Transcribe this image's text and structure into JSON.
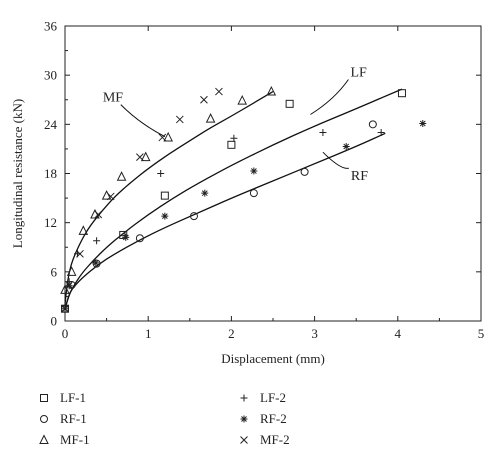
{
  "chart_data": {
    "type": "scatter",
    "xlabel": "Displacement (mm)",
    "ylabel": "Longitudinal resistance (kN)",
    "xlim": [
      0,
      5
    ],
    "ylim": [
      0,
      36
    ],
    "x_ticks": [
      0,
      1,
      2,
      3,
      4,
      5
    ],
    "y_ticks": [
      0,
      6,
      12,
      18,
      24,
      30,
      36
    ],
    "grid": false,
    "legend_position": "bottom",
    "series": [
      {
        "name": "LF-1",
        "marker": "square",
        "x": [
          0.0,
          0.7,
          1.2,
          2.0,
          2.7,
          4.05
        ],
        "y": [
          1.5,
          10.5,
          15.3,
          21.5,
          26.5,
          27.8
        ]
      },
      {
        "name": "RF-1",
        "marker": "circle",
        "x": [
          0.0,
          0.08,
          0.38,
          0.9,
          1.55,
          2.27,
          2.88,
          3.7
        ],
        "y": [
          1.5,
          4.4,
          7.0,
          10.1,
          12.8,
          15.6,
          18.2,
          24.0
        ]
      },
      {
        "name": "MF-1",
        "marker": "triangle",
        "x": [
          0.0,
          0.08,
          0.22,
          0.36,
          0.5,
          0.68,
          0.97,
          1.24,
          1.75,
          2.13,
          2.48
        ],
        "y": [
          3.8,
          6.0,
          11.0,
          13.0,
          15.3,
          17.6,
          20.0,
          22.4,
          24.7,
          26.9,
          28.0
        ]
      },
      {
        "name": "LF-2",
        "marker": "plus",
        "x": [
          0.0,
          0.05,
          0.15,
          0.38,
          0.72,
          1.15,
          2.03,
          3.1,
          3.8
        ],
        "y": [
          1.8,
          4.8,
          8.2,
          9.8,
          10.4,
          18.0,
          22.3,
          23.0,
          23.0
        ]
      },
      {
        "name": "RF-2",
        "marker": "asterisk",
        "x": [
          0.0,
          0.05,
          0.37,
          0.73,
          1.2,
          1.68,
          2.27,
          3.38,
          4.3
        ],
        "y": [
          1.5,
          4.3,
          7.1,
          10.2,
          12.8,
          15.6,
          18.3,
          21.3,
          24.1
        ]
      },
      {
        "name": "MF-2",
        "marker": "cross",
        "x": [
          0.0,
          0.05,
          0.18,
          0.4,
          0.55,
          0.9,
          1.17,
          1.38,
          1.67,
          1.85
        ],
        "y": [
          1.5,
          4.4,
          8.2,
          13.0,
          15.2,
          20.0,
          22.4,
          24.6,
          27.0,
          28.0
        ]
      }
    ],
    "fits": [
      {
        "label": "MF",
        "x": [
          0,
          0.02,
          0.05,
          0.1,
          0.2,
          0.3,
          0.45,
          0.6,
          0.8,
          1.0,
          1.25,
          1.5,
          1.75,
          2.0,
          2.25,
          2.5
        ],
        "y": [
          2.0,
          4.0,
          6.0,
          7.7,
          9.9,
          11.6,
          13.5,
          15.2,
          17.0,
          18.6,
          20.4,
          22.0,
          23.6,
          25.0,
          26.5,
          28.0
        ]
      },
      {
        "label": "LF",
        "x": [
          0,
          0.05,
          0.1,
          0.2,
          0.35,
          0.5,
          0.7,
          1.0,
          1.3,
          1.6,
          2.0,
          2.5,
          3.0,
          3.5,
          4.05
        ],
        "y": [
          1.5,
          3.2,
          4.2,
          5.8,
          7.5,
          9.0,
          10.7,
          13.0,
          15.0,
          16.8,
          19.0,
          21.5,
          23.8,
          25.9,
          28.3
        ]
      },
      {
        "label": "RF",
        "x": [
          0,
          0.05,
          0.1,
          0.2,
          0.4,
          0.6,
          0.9,
          1.2,
          1.6,
          2.0,
          2.5,
          3.0,
          3.5,
          3.85
        ],
        "y": [
          1.5,
          3.3,
          4.1,
          5.2,
          6.9,
          8.2,
          9.9,
          11.4,
          13.2,
          15.0,
          17.1,
          19.2,
          21.3,
          22.9
        ]
      }
    ],
    "curve_labels": [
      {
        "text": "MF",
        "anchor_x": 1.2,
        "anchor_y": 22.5
      },
      {
        "text": "LF",
        "anchor_x": 2.95,
        "anchor_y": 25.2
      },
      {
        "text": "RF",
        "anchor_x": 3.1,
        "anchor_y": 20.6
      }
    ]
  }
}
